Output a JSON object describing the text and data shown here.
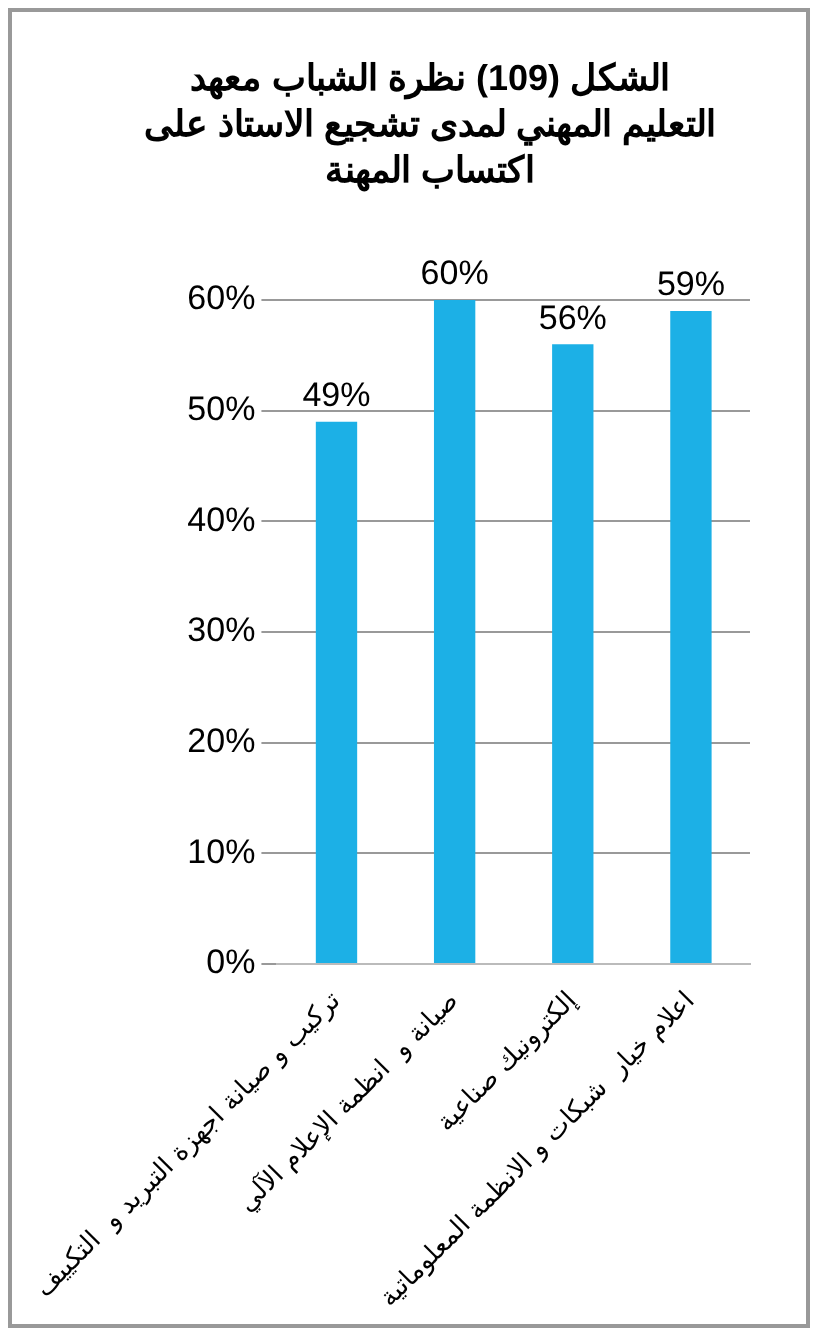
{
  "chart_data": {
    "type": "bar",
    "title": "الشكل (109) نظرة الشباب  معهد التعليم  المهني لمدى تشجيع الاستاذ على اكتساب المهنة",
    "categories": [
      "تركيب و صيانة اجهزة التبريد و  التكييف",
      "صيانة و  انظمة الإعلام الآلي",
      "إلكترونيك صناعية",
      "اعلام خيار  شبكات و الانظمة المعلوماتية"
    ],
    "values": [
      49,
      60,
      56,
      59
    ],
    "value_labels": [
      "49%",
      "60%",
      "56%",
      "59%"
    ],
    "color": "#1cb0e6",
    "ylim": [
      0,
      60
    ],
    "yticks": [
      {
        "value": 0,
        "label": "0%"
      },
      {
        "value": 10,
        "label": "10%"
      },
      {
        "value": 20,
        "label": "20%"
      },
      {
        "value": 30,
        "label": "30%"
      },
      {
        "value": 40,
        "label": "40%"
      },
      {
        "value": 50,
        "label": "50%"
      },
      {
        "value": 60,
        "label": "60%"
      }
    ],
    "grid": "y",
    "legend": false
  }
}
